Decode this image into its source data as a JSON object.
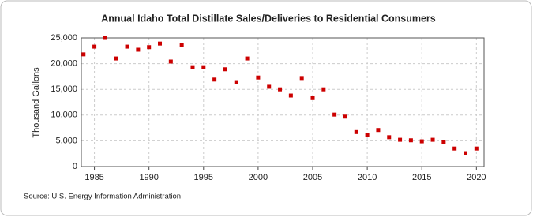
{
  "chart_data": {
    "type": "scatter",
    "title": "Annual Idaho Total Distillate Sales/Deliveries to Residential Consumers",
    "y_label": "Thousand Gallons",
    "source": "Source: U.S. Energy Information Administration",
    "color": "#cc0000",
    "grid": true,
    "x": [
      1984,
      1985,
      1986,
      1987,
      1988,
      1989,
      1990,
      1991,
      1992,
      1993,
      1994,
      1995,
      1996,
      1997,
      1998,
      1999,
      2000,
      2001,
      2002,
      2003,
      2004,
      2005,
      2006,
      2007,
      2008,
      2009,
      2010,
      2011,
      2012,
      2013,
      2014,
      2015,
      2016,
      2017,
      2018,
      2019,
      2020
    ],
    "values": [
      21800,
      23300,
      25000,
      21000,
      23300,
      22700,
      23200,
      23900,
      20400,
      23600,
      19300,
      19300,
      16900,
      18900,
      16400,
      21000,
      17300,
      15500,
      15000,
      13800,
      17200,
      13300,
      15000,
      10100,
      9700,
      6700,
      6100,
      7100,
      5700,
      5200,
      5100,
      4900,
      5200,
      4800,
      3500,
      2600,
      3500
    ],
    "xlim": [
      1983.8,
      2020.7
    ],
    "xticks": [
      1985,
      1990,
      1995,
      2000,
      2005,
      2010,
      2015,
      2020
    ],
    "ylim": [
      0,
      25000
    ],
    "yticks": [
      0,
      {
        "value": 5000,
        "label": "5,000"
      },
      {
        "value": 10000,
        "label": "10,000"
      },
      {
        "value": 15000,
        "label": "15,000"
      },
      {
        "value": 20000,
        "label": "20,000"
      },
      {
        "value": 25000,
        "label": "25,000"
      }
    ]
  }
}
